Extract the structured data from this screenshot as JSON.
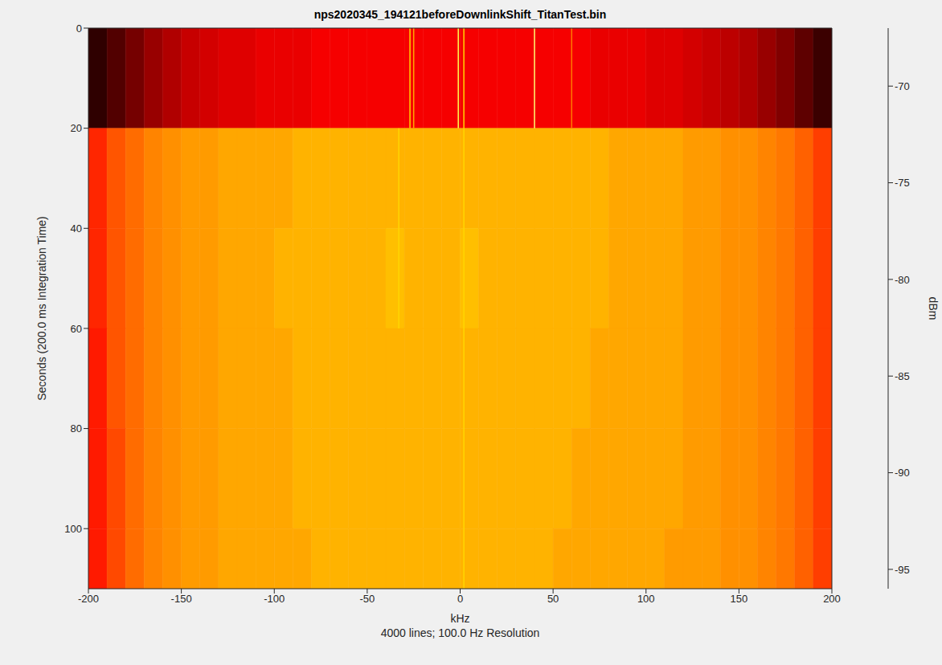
{
  "chart_data": {
    "type": "heatmap",
    "title": "nps2020345_194121beforeDownlinkShift_TitanTest.bin",
    "subtitle": "4000 lines; 100.0 Hz Resolution",
    "x_label": "kHz",
    "y_label": "Seconds (200.0 ms Integration Time)",
    "xlim": [
      -200,
      200
    ],
    "xticks": [
      -200,
      -150,
      -100,
      -50,
      0,
      50,
      100,
      150,
      200
    ],
    "ylim": [
      0,
      112
    ],
    "yticks": [
      0,
      20,
      40,
      60,
      80,
      100
    ],
    "grid": false,
    "heatmap": {
      "x_edges": [
        -200,
        -190,
        -180,
        -170,
        -160,
        -150,
        -140,
        -130,
        -120,
        -110,
        -100,
        -90,
        -80,
        -70,
        -60,
        -50,
        -40,
        -30,
        -20,
        -10,
        0,
        10,
        20,
        30,
        40,
        50,
        60,
        70,
        80,
        90,
        100,
        110,
        120,
        130,
        140,
        150,
        160,
        170,
        180,
        190,
        200
      ],
      "y_edges": [
        0,
        20,
        40,
        60,
        80,
        100,
        112
      ],
      "cells": [
        [
          -94,
          -92.5,
          -91,
          -89.5,
          -88.5,
          -87.5,
          -87,
          -86.5,
          -86.5,
          -86,
          -86,
          -86,
          -85.5,
          -85.5,
          -85.5,
          -85.5,
          -85.5,
          -85.5,
          -85.5,
          -85.5,
          -85.5,
          -85.5,
          -85.5,
          -85.5,
          -85.5,
          -85.5,
          -85.5,
          -86,
          -86,
          -86,
          -86.5,
          -86.5,
          -87,
          -87.5,
          -88,
          -88.5,
          -89.5,
          -90.5,
          -92,
          -93.5
        ],
        [
          -83.5,
          -81.5,
          -80.5,
          -79.5,
          -79,
          -78.5,
          -78.5,
          -78,
          -78,
          -78,
          -78,
          -77.5,
          -77.5,
          -77.5,
          -77.5,
          -77.5,
          -77.5,
          -77.5,
          -77.5,
          -77.5,
          -77.5,
          -77.5,
          -77.5,
          -77.5,
          -77.5,
          -77.5,
          -77.5,
          -77.5,
          -78,
          -78,
          -78,
          -78,
          -78.5,
          -78.5,
          -79,
          -79,
          -79.5,
          -80,
          -81,
          -82.5
        ],
        [
          -83.5,
          -81.5,
          -80.5,
          -79.5,
          -79,
          -78.5,
          -78.5,
          -78,
          -78,
          -78,
          -77.5,
          -77.5,
          -77.5,
          -77.5,
          -77.5,
          -77.5,
          -77,
          -77.5,
          -77.5,
          -77.5,
          -77,
          -77.5,
          -77.5,
          -77.5,
          -77.5,
          -77.5,
          -77.5,
          -77.5,
          -78,
          -78,
          -78,
          -78,
          -78.5,
          -78.5,
          -79,
          -79,
          -79.5,
          -80,
          -81,
          -82.5
        ],
        [
          -84,
          -81.5,
          -80.5,
          -79.5,
          -79,
          -78.5,
          -78.5,
          -78,
          -78,
          -78,
          -78,
          -77.5,
          -77.5,
          -77.5,
          -77.5,
          -77.5,
          -77.5,
          -77.5,
          -77.5,
          -77.5,
          -77.5,
          -77.5,
          -77.5,
          -77.5,
          -77.5,
          -77.5,
          -77.5,
          -78,
          -78,
          -78,
          -78,
          -78,
          -78.5,
          -78.5,
          -79,
          -79,
          -79.5,
          -80,
          -81,
          -82.5
        ],
        [
          -84,
          -82,
          -80.5,
          -79.5,
          -79,
          -78.5,
          -78.5,
          -78,
          -78,
          -78,
          -78,
          -77.5,
          -77.5,
          -77.5,
          -77.5,
          -77.5,
          -77.5,
          -77.5,
          -77.5,
          -77.5,
          -77.5,
          -77.5,
          -77.5,
          -77.5,
          -77.5,
          -77.5,
          -78,
          -78,
          -78,
          -78,
          -78,
          -78,
          -78.5,
          -78.5,
          -79,
          -79,
          -79.5,
          -80,
          -81,
          -82.5
        ],
        [
          -84,
          -82,
          -80.5,
          -79.5,
          -79,
          -78.5,
          -78.5,
          -78,
          -78,
          -78,
          -78,
          -78,
          -77.5,
          -77.5,
          -77.5,
          -77.5,
          -77.5,
          -77.5,
          -77.5,
          -77.5,
          -77.5,
          -77.5,
          -77.5,
          -77.5,
          -77.5,
          -78,
          -78,
          -78,
          -78,
          -78,
          -78,
          -78.5,
          -78.5,
          -78.5,
          -79,
          -79,
          -79.5,
          -80,
          -81,
          -82.5
        ]
      ]
    },
    "signals": [
      {
        "x": -27,
        "from": 0,
        "to": 20,
        "level": -76
      },
      {
        "x": -25,
        "from": 0,
        "to": 20,
        "level": -78
      },
      {
        "x": -33,
        "from": 20,
        "to": 60,
        "level": -76
      },
      {
        "x": -1,
        "from": 0,
        "to": 20,
        "level": -72
      },
      {
        "x": 2,
        "from": 0,
        "to": 112,
        "level": -76
      },
      {
        "x": 40,
        "from": 0,
        "to": 20,
        "level": -71
      },
      {
        "x": 60,
        "from": 0,
        "to": 20,
        "level": -80
      }
    ],
    "colorbar": {
      "label": "dBm",
      "range": [
        -96,
        -67
      ],
      "ticks": [
        -95,
        -90,
        -85,
        -80,
        -75,
        -70
      ]
    }
  }
}
